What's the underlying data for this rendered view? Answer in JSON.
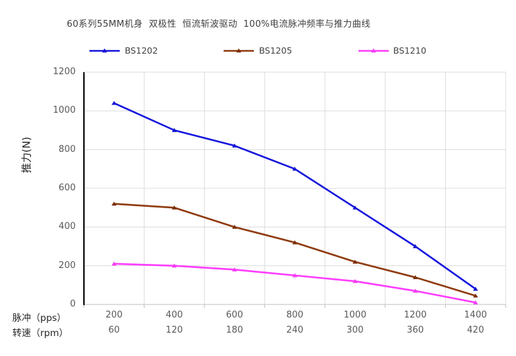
{
  "chart_data": {
    "type": "line",
    "title": "60系列55MM机身  双极性  恒流斩波驱动  100%电流脉冲频率与推力曲线",
    "x_axis": {
      "row1_label": "脉冲（pps）",
      "row2_label": "转速（rpm）",
      "pps_values": [
        200,
        400,
        600,
        800,
        1000,
        1200,
        1400
      ],
      "rpm_values": [
        60,
        120,
        180,
        240,
        300,
        360,
        420
      ]
    },
    "y_axis": {
      "label": "推力(N)",
      "min": 0,
      "max": 1200,
      "ticks": [
        0,
        200,
        400,
        600,
        800,
        1000,
        1200
      ]
    },
    "grid": "on",
    "legend_position": "top",
    "marker_shape": "triangle",
    "colors": {
      "grid": "#dcdcdc",
      "x_axis_line": "#bfbfbf",
      "y_axis_line": "#000000"
    },
    "series": [
      {
        "name": "BS1202",
        "color": "#1616dd",
        "marker_color": "#1414d0",
        "values": [
          1040,
          900,
          820,
          700,
          500,
          300,
          80
        ]
      },
      {
        "name": "BS1205",
        "color": "#8f3b0f",
        "marker_color": "#7a2d07",
        "values": [
          520,
          500,
          400,
          320,
          220,
          140,
          45
        ]
      },
      {
        "name": "BS1210",
        "color": "#ff3dff",
        "marker_color": "#f23cf2",
        "values": [
          210,
          200,
          180,
          150,
          120,
          70,
          10
        ]
      }
    ]
  }
}
